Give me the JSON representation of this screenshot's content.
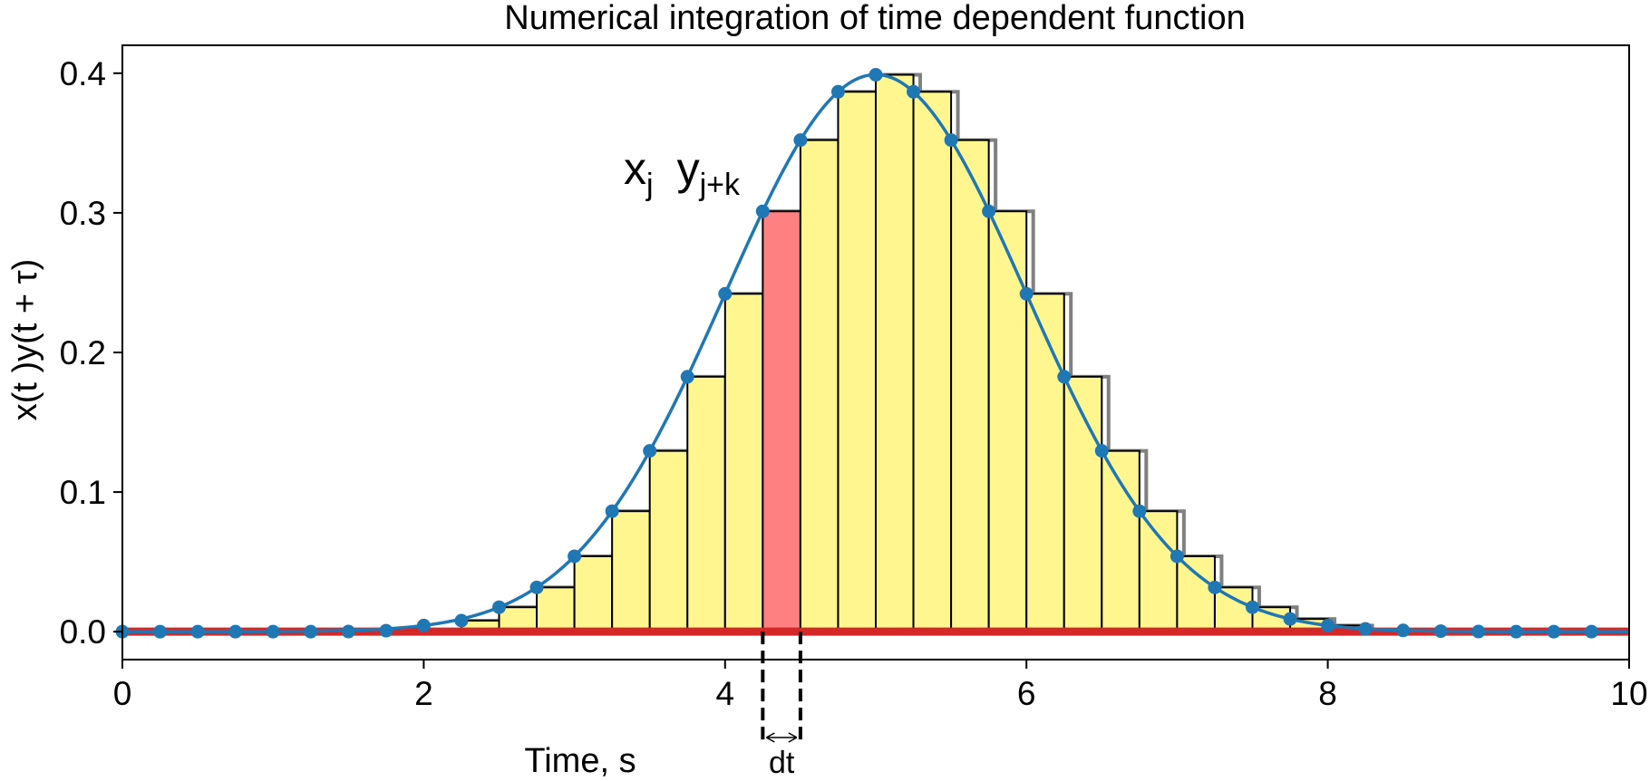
{
  "chart_data": {
    "type": "bar",
    "title": "Numerical integration of time dependent function",
    "xlabel": "Time, s",
    "ylabel": "x(t )y(t + τ)",
    "xlim": [
      0,
      10
    ],
    "ylim": [
      -0.02,
      0.42
    ],
    "xticks": [
      0,
      2,
      4,
      6,
      8,
      10
    ],
    "yticks": [
      0.0,
      0.1,
      0.2,
      0.3,
      0.4
    ],
    "ytick_labels": [
      "0.0",
      "0.1",
      "0.2",
      "0.3",
      "0.4"
    ],
    "grid": false,
    "dt": 0.25,
    "bin_width": 0.25,
    "highlight_bin_start": 4.25,
    "annotation": {
      "main1": "x",
      "sub1": "j",
      "main2": "y",
      "sub2": "j+k",
      "x": 4.0,
      "y": 0.32
    },
    "dt_label": "dt",
    "colors": {
      "bar_fill": "#fff68f",
      "bar_edge": "#000000",
      "highlight_fill": "#ff8080",
      "curve": "#1f77b4",
      "curve_tail": "#8aaa60",
      "points": "#1f77b4",
      "baseline": "#d62728",
      "shadow_edge": "#808080"
    },
    "curve_peak_t": 5.0,
    "curve_peak_value": 0.399,
    "points": {
      "x": [
        0,
        0.25,
        0.5,
        0.75,
        1.0,
        1.25,
        1.5,
        1.75,
        2.0,
        2.25,
        2.5,
        2.75,
        3.0,
        3.25,
        3.5,
        3.75,
        4.0,
        4.25,
        4.5,
        4.75,
        5.0,
        5.25,
        5.5,
        5.75,
        6.0,
        6.25,
        6.5,
        6.75,
        7.0,
        7.25,
        7.5,
        7.75,
        8.0,
        8.25,
        8.5,
        8.75,
        9.0,
        9.25,
        9.5,
        9.75
      ],
      "y": [
        0.0,
        0.0,
        0.0,
        0.0,
        0.0,
        0.0,
        0.0001,
        0.0007,
        0.0044,
        0.0079,
        0.0175,
        0.0317,
        0.054,
        0.0863,
        0.1295,
        0.1826,
        0.242,
        0.3011,
        0.3521,
        0.3867,
        0.3989,
        0.3867,
        0.3521,
        0.3011,
        0.242,
        0.1826,
        0.1295,
        0.0863,
        0.054,
        0.0317,
        0.0175,
        0.0091,
        0.0044,
        0.002,
        0.0009,
        0.0004,
        0.0001,
        0.0,
        0.0,
        0.0
      ]
    },
    "bars": {
      "x": [
        2.25,
        2.5,
        2.75,
        3.0,
        3.25,
        3.5,
        3.75,
        4.0,
        4.25,
        4.5,
        4.75,
        5.0,
        5.25,
        5.5,
        5.75,
        6.0,
        6.25,
        6.5,
        6.75,
        7.0,
        7.25,
        7.5,
        7.75,
        8.0
      ],
      "values": [
        0.0079,
        0.0175,
        0.0317,
        0.054,
        0.0863,
        0.1295,
        0.1826,
        0.242,
        0.3011,
        0.3521,
        0.3867,
        0.3989,
        0.3867,
        0.3521,
        0.3011,
        0.242,
        0.1826,
        0.1295,
        0.0863,
        0.054,
        0.0317,
        0.0175,
        0.0091,
        0.0044
      ]
    }
  }
}
